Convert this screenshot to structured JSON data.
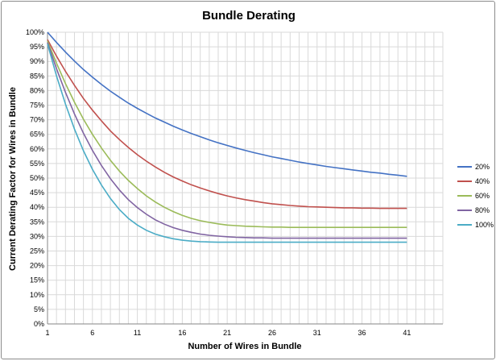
{
  "chart_data": {
    "type": "line",
    "title": "Bundle Derating",
    "xlabel": "Number of Wires in Bundle",
    "ylabel": "Current Derating Factor for Wires in Bundle",
    "xlim": [
      1,
      45
    ],
    "ylim": [
      0,
      100
    ],
    "x_ticks": [
      1,
      6,
      11,
      16,
      21,
      26,
      31,
      36,
      41
    ],
    "y_ticks": [
      "0%",
      "5%",
      "10%",
      "15%",
      "20%",
      "25%",
      "30%",
      "35%",
      "40%",
      "45%",
      "50%",
      "55%",
      "60%",
      "65%",
      "70%",
      "75%",
      "80%",
      "85%",
      "90%",
      "95%",
      "100%"
    ],
    "grid": true,
    "legend_position": "right",
    "x": [
      1,
      2,
      3,
      4,
      5,
      6,
      7,
      8,
      9,
      10,
      11,
      12,
      13,
      14,
      15,
      16,
      17,
      18,
      19,
      20,
      21,
      22,
      23,
      24,
      25,
      26,
      27,
      28,
      29,
      30,
      31,
      32,
      33,
      34,
      35,
      36,
      37,
      38,
      39,
      40,
      41
    ],
    "series": [
      {
        "name": "20%",
        "color": "#4472c4",
        "values": [
          100,
          96.5,
          93.2,
          90.1,
          87.2,
          84.6,
          82.1,
          79.8,
          77.7,
          75.7,
          73.9,
          72.2,
          70.6,
          69.2,
          67.8,
          66.5,
          65.3,
          64.2,
          63.1,
          62.1,
          61.2,
          60.3,
          59.5,
          58.7,
          58.0,
          57.3,
          56.7,
          56.1,
          55.5,
          55.0,
          54.5,
          54.0,
          53.6,
          53.2,
          52.8,
          52.4,
          52.0,
          51.7,
          51.3,
          51.0,
          50.6
        ]
      },
      {
        "name": "40%",
        "color": "#c0504d",
        "values": [
          97.5,
          91.8,
          86.6,
          81.8,
          77.3,
          73.3,
          69.6,
          66.2,
          63.2,
          60.5,
          58.0,
          55.8,
          53.8,
          52.0,
          50.4,
          49.0,
          47.7,
          46.6,
          45.6,
          44.7,
          43.9,
          43.2,
          42.6,
          42.1,
          41.6,
          41.2,
          40.9,
          40.6,
          40.4,
          40.2,
          40.1,
          40.0,
          39.9,
          39.8,
          39.8,
          39.7,
          39.7,
          39.6,
          39.6,
          39.6,
          39.6
        ]
      },
      {
        "name": "60%",
        "color": "#9bbb59",
        "values": [
          97.0,
          89.4,
          82.4,
          76.0,
          70.2,
          65.0,
          60.3,
          56.1,
          52.4,
          49.2,
          46.4,
          43.9,
          41.8,
          40.0,
          38.5,
          37.2,
          36.2,
          35.4,
          34.8,
          34.3,
          33.9,
          33.7,
          33.5,
          33.4,
          33.3,
          33.2,
          33.2,
          33.1,
          33.1,
          33.1,
          33.1,
          33.1,
          33.1,
          33.1,
          33.1,
          33.1,
          33.1,
          33.1,
          33.1,
          33.1,
          33.1
        ]
      },
      {
        "name": "80%",
        "color": "#8064a2",
        "values": [
          96.5,
          87.5,
          79.4,
          72.0,
          65.4,
          59.5,
          54.3,
          49.8,
          45.9,
          42.6,
          39.9,
          37.6,
          35.7,
          34.2,
          33.0,
          32.1,
          31.4,
          30.8,
          30.4,
          30.1,
          29.9,
          29.7,
          29.6,
          29.5,
          29.5,
          29.4,
          29.4,
          29.4,
          29.4,
          29.4,
          29.4,
          29.4,
          29.4,
          29.4,
          29.4,
          29.4,
          29.4,
          29.4,
          29.4,
          29.4,
          29.4
        ]
      },
      {
        "name": "100%",
        "color": "#4bacc6",
        "values": [
          96.0,
          85.0,
          75.4,
          66.8,
          59.4,
          53.0,
          47.6,
          43.0,
          39.2,
          36.2,
          33.9,
          32.1,
          30.8,
          29.9,
          29.2,
          28.7,
          28.4,
          28.2,
          28.1,
          28.0,
          28.0,
          28.0,
          28.0,
          28.0,
          28.0,
          28.0,
          28.0,
          28.0,
          28.0,
          28.0,
          28.0,
          28.0,
          28.0,
          28.0,
          28.0,
          28.0,
          28.0,
          28.0,
          28.0,
          28.0,
          28.0
        ]
      }
    ]
  }
}
